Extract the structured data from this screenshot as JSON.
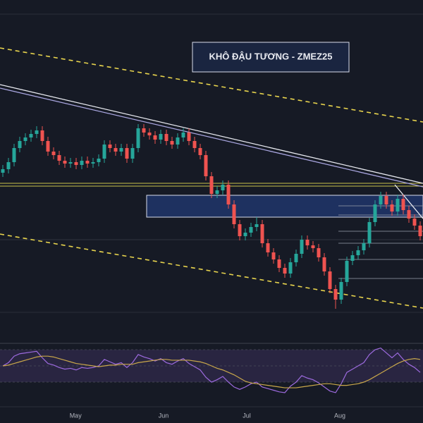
{
  "chart_data": [
    {
      "type": "candlestick",
      "title": "KHÔ ĐẬU TƯƠNG - ZMEZ25",
      "ylim": [
        0,
        490
      ],
      "up_color": "#26a69a",
      "down_color": "#ef5350",
      "xticks": [
        {
          "value": 12.9,
          "label": "May"
        },
        {
          "value": 28.5,
          "label": "Jun"
        },
        {
          "value": 43.25,
          "label": "Jul"
        },
        {
          "value": 59.75,
          "label": "Aug"
        }
      ],
      "open": [
        245,
        250,
        260,
        280,
        290,
        295,
        300,
        305,
        290,
        275,
        270,
        262,
        258,
        260,
        256,
        262,
        258,
        260,
        265,
        285,
        280,
        275,
        280,
        265,
        280,
        308,
        302,
        298,
        292,
        300,
        290,
        285,
        295,
        302,
        290,
        280,
        270,
        240,
        215,
        220,
        228,
        200,
        172,
        155,
        160,
        168,
        172,
        145,
        132,
        122,
        110,
        102,
        118,
        130,
        150,
        142,
        138,
        125,
        105,
        80,
        65,
        90,
        120,
        128,
        135,
        145,
        175,
        200,
        212,
        200,
        190,
        208,
        192,
        180,
        170
      ],
      "high": [
        256,
        266,
        286,
        296,
        301,
        306,
        311,
        311,
        296,
        281,
        276,
        268,
        266,
        266,
        268,
        268,
        266,
        271,
        291,
        291,
        286,
        286,
        286,
        286,
        314,
        314,
        308,
        304,
        306,
        306,
        296,
        301,
        308,
        308,
        296,
        286,
        276,
        246,
        226,
        234,
        234,
        206,
        178,
        166,
        174,
        182,
        178,
        151,
        138,
        128,
        116,
        124,
        136,
        156,
        156,
        148,
        144,
        131,
        111,
        86,
        96,
        126,
        134,
        141,
        151,
        181,
        206,
        218,
        218,
        206,
        214,
        214,
        198,
        186,
        176
      ],
      "low": [
        239,
        244,
        254,
        274,
        284,
        289,
        294,
        284,
        269,
        264,
        256,
        252,
        252,
        250,
        250,
        252,
        252,
        254,
        259,
        274,
        269,
        269,
        259,
        259,
        274,
        296,
        292,
        286,
        286,
        284,
        279,
        279,
        289,
        284,
        274,
        264,
        234,
        209,
        209,
        214,
        194,
        166,
        149,
        149,
        154,
        162,
        139,
        126,
        116,
        104,
        96,
        96,
        112,
        124,
        136,
        132,
        119,
        99,
        74,
        52,
        59,
        84,
        114,
        122,
        129,
        139,
        169,
        194,
        194,
        184,
        184,
        186,
        174,
        164,
        149
      ],
      "close": [
        250,
        260,
        280,
        290,
        295,
        300,
        305,
        290,
        275,
        270,
        262,
        258,
        260,
        256,
        262,
        258,
        260,
        265,
        285,
        280,
        275,
        280,
        265,
        280,
        308,
        302,
        298,
        292,
        300,
        290,
        285,
        295,
        302,
        290,
        280,
        270,
        240,
        215,
        220,
        228,
        200,
        172,
        155,
        160,
        168,
        172,
        145,
        132,
        122,
        110,
        102,
        118,
        130,
        150,
        142,
        138,
        125,
        105,
        80,
        65,
        90,
        120,
        128,
        135,
        145,
        175,
        200,
        212,
        200,
        190,
        208,
        192,
        180,
        170,
        155
      ]
    },
    {
      "type": "line",
      "ylim": [
        0,
        100
      ],
      "band": [
        30,
        70
      ],
      "series": [
        {
          "color": "#9c6ade",
          "values": [
            50,
            54,
            62,
            65,
            66,
            67,
            68,
            60,
            53,
            51,
            48,
            46,
            47,
            45,
            48,
            47,
            48,
            50,
            58,
            55,
            52,
            54,
            48,
            54,
            64,
            61,
            59,
            56,
            59,
            54,
            52,
            56,
            59,
            53,
            49,
            45,
            36,
            30,
            33,
            37,
            30,
            24,
            21,
            24,
            28,
            30,
            24,
            22,
            20,
            18,
            17,
            25,
            30,
            38,
            35,
            33,
            29,
            24,
            19,
            17,
            28,
            42,
            46,
            50,
            54,
            64,
            70,
            72,
            66,
            60,
            66,
            58,
            52,
            48,
            42
          ]
        },
        {
          "color": "#c9a74a",
          "values": [
            50,
            51,
            53,
            55,
            57,
            59,
            61,
            62,
            62,
            61,
            59,
            57,
            55,
            53,
            52,
            51,
            50,
            49,
            50,
            51,
            51,
            52,
            52,
            52,
            54,
            55,
            56,
            57,
            58,
            58,
            57,
            57,
            57,
            57,
            56,
            55,
            53,
            50,
            47,
            45,
            42,
            39,
            35,
            31,
            29,
            28,
            27,
            26,
            25,
            24,
            23,
            23,
            23,
            24,
            25,
            26,
            27,
            28,
            28,
            27,
            26,
            26,
            27,
            28,
            30,
            33,
            37,
            41,
            45,
            49,
            53,
            56,
            58,
            59,
            58
          ]
        }
      ]
    }
  ]
}
